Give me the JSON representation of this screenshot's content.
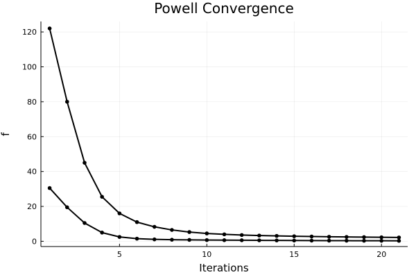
{
  "chart_data": {
    "type": "line",
    "title": "Powell Convergence",
    "xlabel": "Iterations",
    "ylabel": "f",
    "xlim": [
      0.5,
      21.5
    ],
    "ylim": [
      -3,
      126
    ],
    "xticks": [
      5,
      10,
      15,
      20
    ],
    "yticks": [
      0,
      20,
      40,
      60,
      80,
      100,
      120
    ],
    "grid": true,
    "legend": "none",
    "line_color": "#000000",
    "x": [
      1,
      2,
      3,
      4,
      5,
      6,
      7,
      8,
      9,
      10,
      11,
      12,
      13,
      14,
      15,
      16,
      17,
      18,
      19,
      20,
      21
    ],
    "series": [
      {
        "values": [
          122,
          80,
          45,
          25.5,
          16,
          11,
          8.3,
          6.5,
          5.3,
          4.5,
          4,
          3.6,
          3.3,
          3.1,
          2.9,
          2.75,
          2.6,
          2.5,
          2.4,
          2.3,
          2.2
        ]
      },
      {
        "values": [
          30.5,
          19.5,
          10.5,
          5,
          2.5,
          1.5,
          1.1,
          0.9,
          0.8,
          0.7,
          0.65,
          0.6,
          0.55,
          0.5,
          0.45,
          0.4,
          0.38,
          0.35,
          0.32,
          0.3,
          0.28
        ]
      }
    ]
  }
}
